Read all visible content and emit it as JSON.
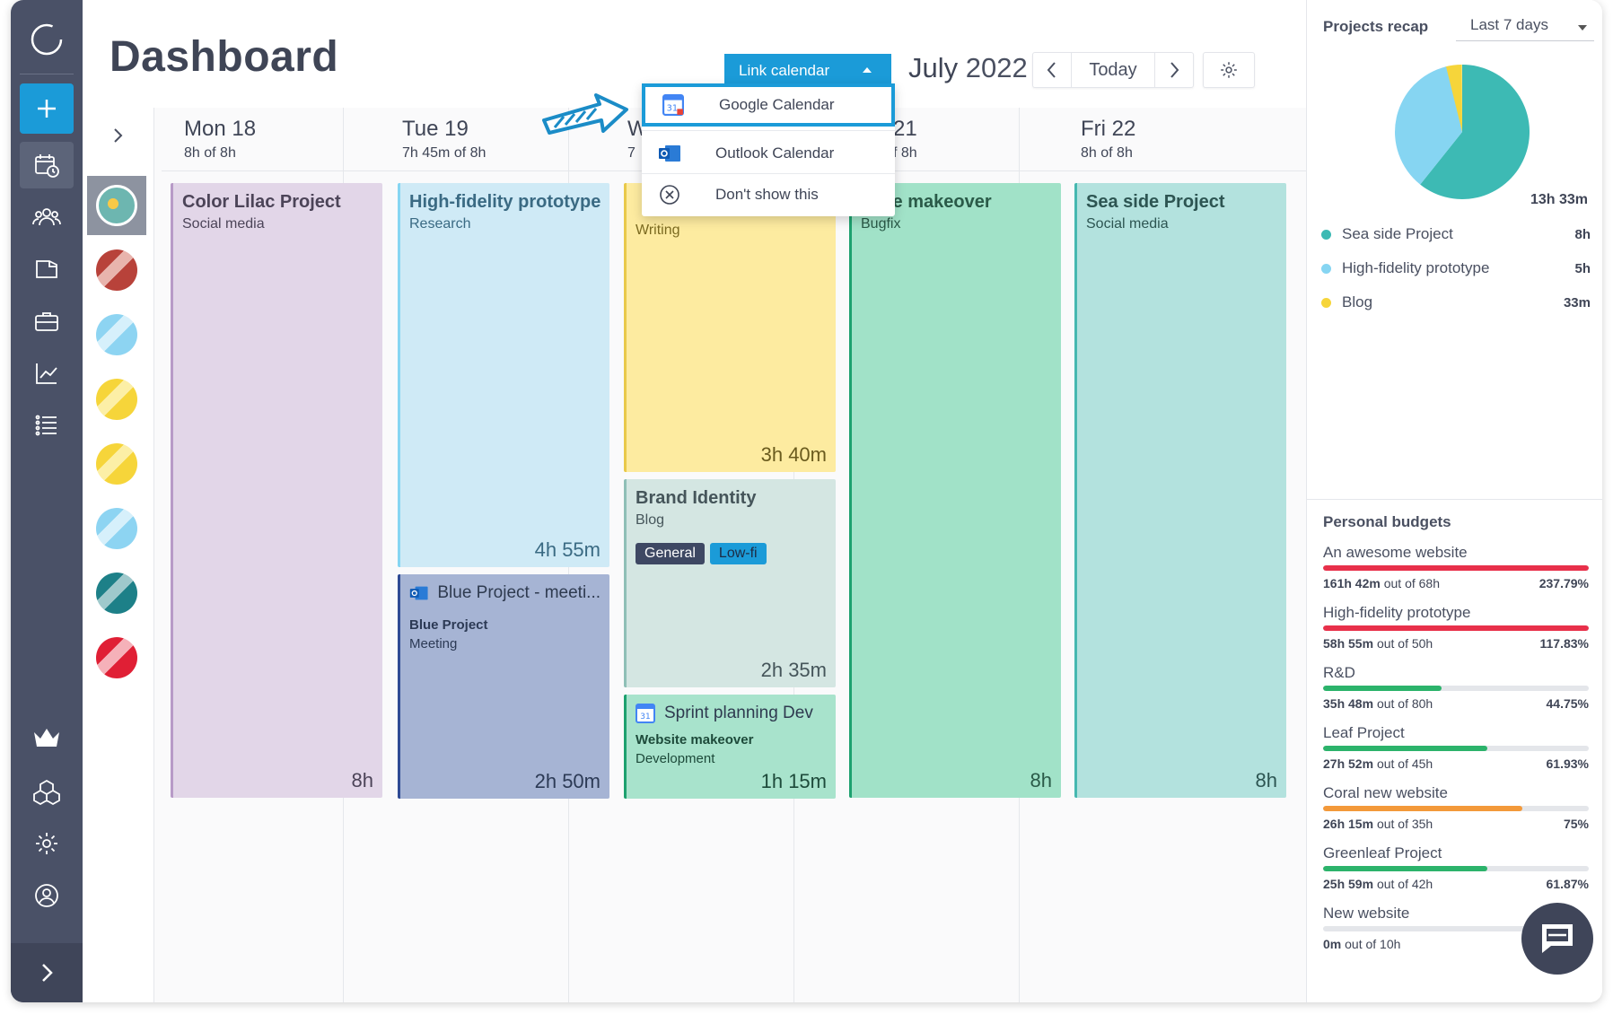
{
  "page": {
    "title": "Dashboard"
  },
  "toolbar": {
    "link_calendar": "Link calendar",
    "month": "July",
    "year": "2022",
    "today": "Today"
  },
  "dropdown": {
    "items": [
      {
        "label": "Google Calendar",
        "icon": "google-calendar-icon"
      },
      {
        "label": "Outlook Calendar",
        "icon": "outlook-icon"
      },
      {
        "label": "Don't show this",
        "icon": "close-circle-icon"
      }
    ]
  },
  "days": [
    {
      "label": "Mon 18",
      "logged": "8h",
      "of": "of 8h"
    },
    {
      "label": "Tue 19",
      "logged": "7h 45m",
      "of": "of 8h"
    },
    {
      "label": "W",
      "logged": "7",
      "of": ""
    },
    {
      "label": "21",
      "logged": "f 8h",
      "of": ""
    },
    {
      "label": "Fri 22",
      "logged": "8h",
      "of": "of 8h"
    }
  ],
  "events": [
    {
      "title": "Color Lilac Project",
      "sub": "Social media",
      "dur": "8h"
    },
    {
      "title": "High-fidelity prototype",
      "sub": "Research",
      "dur": "4h 55m"
    },
    {
      "title": "Blue Project - meeti...",
      "sub": "Blue Project",
      "sub2": "Meeting",
      "dur": "2h 50m"
    },
    {
      "title": "",
      "sub": "Writing",
      "dur": "3h 40m"
    },
    {
      "title": "Brand Identity",
      "sub": "Blog",
      "tag1": "General",
      "tag2": "Low-fi",
      "dur": "2h 35m"
    },
    {
      "title": "Sprint planning Dev",
      "sub": "Website makeover",
      "sub2": "Development",
      "dur": "1h 15m"
    },
    {
      "title": "bsite makeover",
      "sub": "Bugfix",
      "dur": "8h"
    },
    {
      "title": "Sea side Project",
      "sub": "Social media",
      "dur": "8h"
    }
  ],
  "recap": {
    "title": "Projects recap",
    "range": "Last 7 days",
    "total": "13h 33m",
    "legend": [
      {
        "name": "Sea side Project",
        "value": "8h",
        "color": "#3dbab4"
      },
      {
        "name": "High-fidelity prototype",
        "value": "5h",
        "color": "#86d5f2"
      },
      {
        "name": "Blog",
        "value": "33m",
        "color": "#f6d53a"
      }
    ]
  },
  "budgets": {
    "title": "Personal budgets",
    "items": [
      {
        "name": "An awesome website",
        "spent": "161h 42m",
        "of": "out of 68h",
        "pct": "237.79%",
        "fraction": 1.0,
        "color": "#e8304a"
      },
      {
        "name": "High-fidelity prototype",
        "spent": "58h 55m",
        "of": "out of 50h",
        "pct": "117.83%",
        "fraction": 1.0,
        "color": "#e8304a"
      },
      {
        "name": "R&D",
        "spent": "35h 48m",
        "of": "out of 80h",
        "pct": "44.75%",
        "fraction": 0.4475,
        "color": "#2cb36b"
      },
      {
        "name": "Leaf Project",
        "spent": "27h 52m",
        "of": "out of 45h",
        "pct": "61.93%",
        "fraction": 0.6193,
        "color": "#2cb36b"
      },
      {
        "name": "Coral new website",
        "spent": "26h 15m",
        "of": "out of 35h",
        "pct": "75%",
        "fraction": 0.75,
        "color": "#f3993a"
      },
      {
        "name": "Greenleaf Project",
        "spent": "25h 59m",
        "of": "out of 42h",
        "pct": "61.87%",
        "fraction": 0.6187,
        "color": "#2cb36b"
      },
      {
        "name": "New website",
        "spent": "0m",
        "of": "out of 10h",
        "pct": "",
        "fraction": 0,
        "color": "#2cb36b"
      }
    ]
  }
}
